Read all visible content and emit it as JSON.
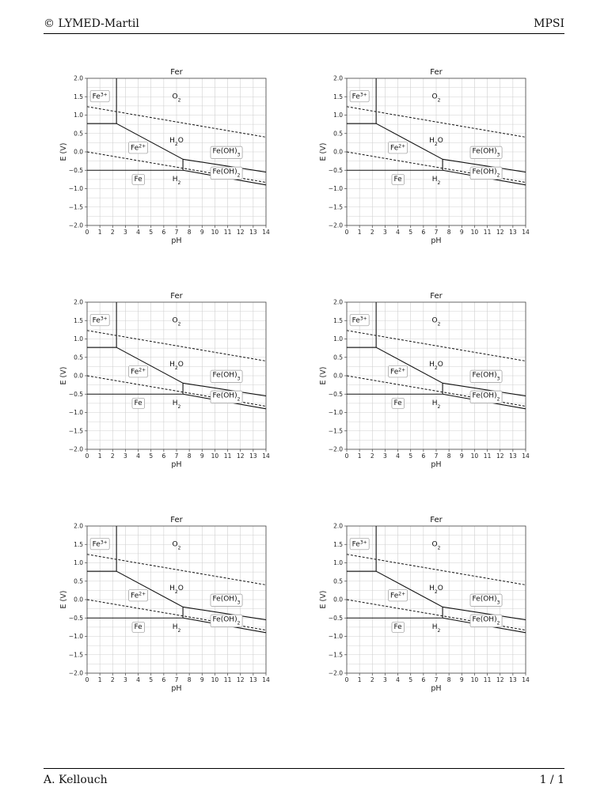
{
  "header": {
    "left": "© LYMED-Martil",
    "right": "MPSI"
  },
  "footer": {
    "left": "A. Kellouch",
    "right": "1 / 1"
  },
  "chart_data": {
    "type": "line",
    "title": "Fer",
    "xlabel": "pH",
    "ylabel": "E (V)",
    "xlim": [
      0,
      14
    ],
    "ylim": [
      -2.0,
      2.0
    ],
    "xticks": [
      "0",
      "1",
      "2",
      "3",
      "4",
      "5",
      "6",
      "7",
      "8",
      "9",
      "10",
      "11",
      "12",
      "13",
      "14"
    ],
    "yticks": [
      "2.0",
      "1.5",
      "1.0",
      "0.5",
      "0.0",
      "−0.5",
      "−1.0",
      "−1.5",
      "−2.0"
    ],
    "grid": true,
    "series": [
      {
        "style": "solid",
        "x": [
          0,
          2.3
        ],
        "y": [
          0.77,
          0.77
        ]
      },
      {
        "style": "solid",
        "x": [
          2.3,
          2.3
        ],
        "y": [
          0.77,
          2.0
        ]
      },
      {
        "style": "solid",
        "x": [
          2.3,
          7.5
        ],
        "y": [
          0.77,
          -0.2
        ]
      },
      {
        "style": "solid",
        "x": [
          7.5,
          7.5
        ],
        "y": [
          -0.2,
          -0.5
        ]
      },
      {
        "style": "solid",
        "x": [
          0,
          7.5
        ],
        "y": [
          -0.5,
          -0.5
        ]
      },
      {
        "style": "solid",
        "x": [
          7.5,
          14
        ],
        "y": [
          -0.2,
          -0.55
        ]
      },
      {
        "style": "solid",
        "x": [
          7.5,
          14
        ],
        "y": [
          -0.5,
          -0.9
        ]
      },
      {
        "style": "dashed",
        "x": [
          0,
          14
        ],
        "y": [
          1.23,
          0.4
        ]
      },
      {
        "style": "dashed",
        "x": [
          0,
          14
        ],
        "y": [
          0.0,
          -0.83
        ]
      }
    ],
    "species": [
      {
        "html": "Fe<tspan baseline-shift='super' font-size='6'>3+</tspan>",
        "x": 1.0,
        "y": 1.52,
        "boxed": true
      },
      {
        "html": "O<tspan baseline-shift='sub' font-size='6'>2</tspan>",
        "x": 7.0,
        "y": 1.52,
        "boxed": false
      },
      {
        "html": "H<tspan baseline-shift='sub' font-size='6'>2</tspan>O",
        "x": 7.0,
        "y": 0.32,
        "boxed": false
      },
      {
        "html": "Fe<tspan baseline-shift='super' font-size='6'>2+</tspan>",
        "x": 4.0,
        "y": 0.12,
        "boxed": true
      },
      {
        "html": "Fe(OH)<tspan baseline-shift='sub' font-size='6'>3</tspan>",
        "x": 10.9,
        "y": 0.03,
        "boxed": true
      },
      {
        "html": "Fe(OH)<tspan baseline-shift='sub' font-size='6'>2</tspan>",
        "x": 10.9,
        "y": -0.53,
        "boxed": true
      },
      {
        "html": "Fe",
        "x": 4.0,
        "y": -0.73,
        "boxed": true
      },
      {
        "html": "H<tspan baseline-shift='sub' font-size='6'>2</tspan>",
        "x": 7.0,
        "y": -0.73,
        "boxed": false
      }
    ]
  }
}
